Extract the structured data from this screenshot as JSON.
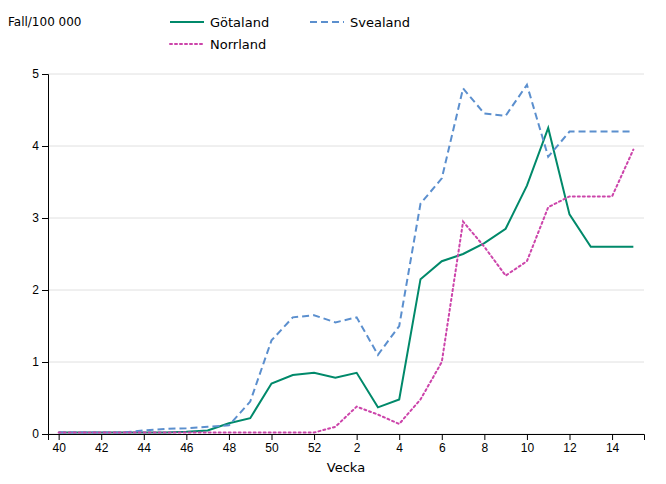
{
  "chart_data": {
    "type": "line",
    "xlabel": "Vecka",
    "ylabel": "Fall/100 000",
    "categories": [
      "40",
      null,
      "42",
      null,
      "44",
      null,
      "46",
      null,
      "48",
      null,
      "50",
      null,
      "52",
      null,
      "2",
      null,
      "4",
      null,
      "6",
      null,
      "8",
      null,
      "10",
      null,
      "12",
      null,
      "14",
      null
    ],
    "series": [
      {
        "name": "Götaland",
        "color": "#00896A",
        "line_style": "solid",
        "values": [
          0.02,
          0.02,
          0.02,
          0.02,
          0.02,
          0.02,
          0.03,
          0.05,
          0.15,
          0.22,
          0.7,
          0.82,
          0.85,
          0.78,
          0.85,
          0.37,
          0.48,
          2.15,
          2.4,
          2.5,
          2.65,
          2.85,
          3.45,
          4.25,
          3.05,
          2.6,
          2.6,
          2.6
        ]
      },
      {
        "name": "Svealand",
        "color": "#5B8FCE",
        "line_style": "dashed",
        "values": [
          0.02,
          0.02,
          0.02,
          0.02,
          0.05,
          0.07,
          0.08,
          0.1,
          0.12,
          0.45,
          1.3,
          1.62,
          1.65,
          1.55,
          1.62,
          1.1,
          1.5,
          3.2,
          3.55,
          4.8,
          4.45,
          4.42,
          4.85,
          3.85,
          4.2,
          4.2,
          4.2,
          4.2
        ]
      },
      {
        "name": "Norrland",
        "color": "#CC44AA",
        "line_style": "dotted",
        "values": [
          0.02,
          0.02,
          0.02,
          0.02,
          0.02,
          0.02,
          0.02,
          0.02,
          0.02,
          0.02,
          0.02,
          0.02,
          0.02,
          0.1,
          0.38,
          0.27,
          0.14,
          0.48,
          1.0,
          2.95,
          2.6,
          2.2,
          2.4,
          3.15,
          3.3,
          3.3,
          3.3,
          3.95
        ]
      }
    ],
    "ylim": [
      0,
      5
    ],
    "yticks": [
      0,
      1,
      2,
      3,
      4,
      5
    ],
    "grid": "y",
    "legend": "top"
  }
}
